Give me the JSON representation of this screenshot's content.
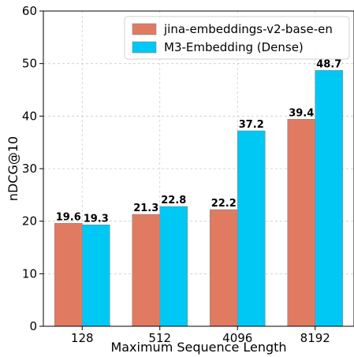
{
  "chart_data": {
    "type": "bar",
    "title": "",
    "xlabel": "Maximum Sequence Length",
    "ylabel": "nDCG@10",
    "categories": [
      "128",
      "512",
      "4096",
      "8192"
    ],
    "ylim": [
      0,
      60
    ],
    "yticks": [
      0,
      10,
      20,
      30,
      40,
      50,
      60
    ],
    "grid": true,
    "legend_position": "top-right",
    "series": [
      {
        "name": "jina-embeddings-v2-base-en",
        "values": [
          19.6,
          21.3,
          22.2,
          39.4
        ],
        "color": "#E07B62"
      },
      {
        "name": "M3-Embedding (Dense)",
        "values": [
          19.3,
          22.8,
          37.2,
          48.7
        ],
        "color": "#00C8F5"
      }
    ]
  }
}
